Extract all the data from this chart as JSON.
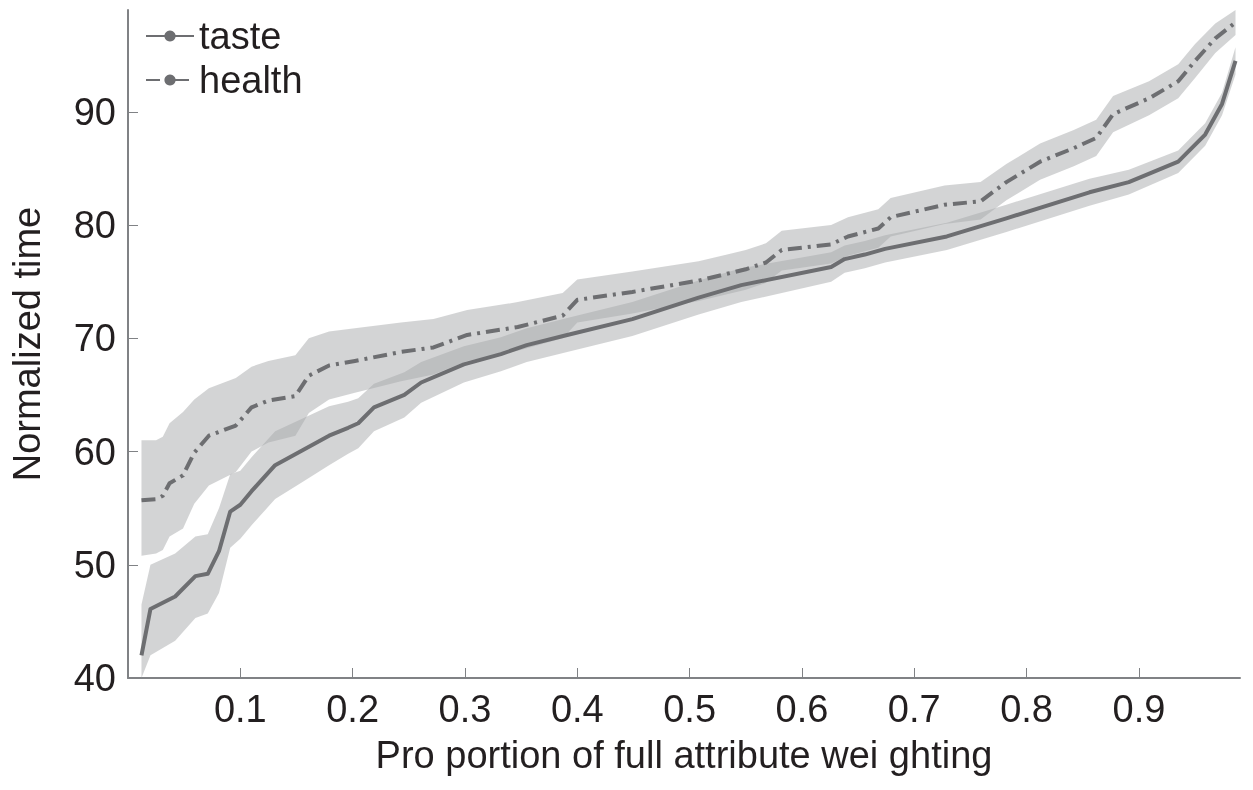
{
  "chart_data": {
    "type": "line",
    "xlabel": "Pro portion of full attribute wei ghting",
    "ylabel": "Normalized time",
    "xlim": [
      0,
      0.99
    ],
    "xticks": [
      0.1,
      0.2,
      0.3,
      0.4,
      0.5,
      0.6,
      0.7,
      0.8,
      0.9
    ],
    "ylim": [
      40,
      99
    ],
    "yticks": [
      40,
      50,
      60,
      70,
      80,
      90
    ],
    "grid": false,
    "legend": "top left",
    "marker": "none",
    "series": [
      {
        "name": "taste",
        "color": "#6d6e71",
        "line_style": "solid",
        "x": [
          0.012,
          0.02,
          0.042,
          0.06,
          0.071,
          0.081,
          0.091,
          0.1,
          0.11,
          0.131,
          0.155,
          0.179,
          0.196,
          0.205,
          0.219,
          0.246,
          0.261,
          0.299,
          0.332,
          0.355,
          0.391,
          0.449,
          0.508,
          0.546,
          0.626,
          0.638,
          0.656,
          0.674,
          0.729,
          0.782,
          0.856,
          0.891,
          0.935,
          0.959,
          0.974,
          0.986
        ],
        "values": [
          42,
          46.1,
          47.2,
          49,
          49.2,
          51.2,
          54.7,
          55.3,
          56.5,
          58.8,
          60.1,
          61.4,
          62.1,
          62.5,
          63.9,
          65,
          66.1,
          67.7,
          68.6,
          69.4,
          70.3,
          71.7,
          73.6,
          74.7,
          76.3,
          77,
          77.4,
          77.9,
          79,
          80.6,
          82.9,
          83.8,
          85.6,
          88,
          90.7,
          94.5
        ],
        "lower": [
          40,
          42,
          43.3,
          45.3,
          45.7,
          47.5,
          51.5,
          52.3,
          53.5,
          55.8,
          57.3,
          58.8,
          59.8,
          60.3,
          61.8,
          63,
          64.3,
          66.1,
          67.1,
          67.9,
          68.8,
          70.2,
          72.1,
          73.2,
          75,
          75.8,
          76.2,
          76.7,
          77.8,
          79.4,
          81.7,
          82.7,
          84.6,
          87,
          89.7,
          93.3
        ],
        "upper": [
          46.5,
          50,
          51,
          52.5,
          52.7,
          55,
          58,
          58.3,
          59.5,
          61.8,
          62.9,
          64,
          64.4,
          64.7,
          66,
          67,
          67.9,
          69.3,
          70.1,
          70.9,
          71.8,
          73.2,
          75.1,
          76.2,
          77.6,
          78.2,
          78.6,
          79.1,
          80.2,
          81.8,
          84.1,
          84.9,
          86.6,
          89,
          91.7,
          95.7
        ]
      },
      {
        "name": "health",
        "color": "#6d6e71",
        "line_style": "dashdot",
        "x": [
          0.012,
          0.025,
          0.031,
          0.037,
          0.049,
          0.059,
          0.072,
          0.096,
          0.11,
          0.125,
          0.149,
          0.161,
          0.179,
          0.202,
          0.243,
          0.272,
          0.302,
          0.347,
          0.387,
          0.4,
          0.449,
          0.508,
          0.55,
          0.568,
          0.582,
          0.626,
          0.641,
          0.668,
          0.679,
          0.727,
          0.759,
          0.782,
          0.812,
          0.842,
          0.862,
          0.877,
          0.909,
          0.935,
          0.95,
          0.968,
          0.986
        ],
        "values": [
          55.7,
          55.8,
          56.1,
          57.2,
          57.9,
          59.9,
          61.4,
          62.3,
          63.9,
          64.5,
          64.9,
          66.7,
          67.6,
          68,
          68.8,
          69.2,
          70.3,
          71,
          72,
          73.4,
          74.1,
          75.1,
          76.1,
          76.7,
          77.8,
          78.3,
          79,
          79.7,
          80.7,
          81.8,
          82.1,
          83.8,
          85.6,
          86.8,
          87.7,
          89.8,
          91.2,
          92.7,
          94.5,
          96.5,
          97.9
        ],
        "lower": [
          50.8,
          51,
          51.3,
          52.5,
          53.2,
          55.4,
          57,
          58.2,
          60,
          60.8,
          61.4,
          63.4,
          64.6,
          65.2,
          66.2,
          66.8,
          68,
          68.9,
          70,
          71.4,
          72.2,
          73.3,
          74.3,
          74.9,
          76,
          76.6,
          77.3,
          78,
          79,
          80.1,
          80.5,
          82.2,
          84,
          85.2,
          86.1,
          88.2,
          89.7,
          91.2,
          93,
          95.2,
          96.8
        ],
        "upper": [
          61,
          61,
          61.3,
          62.5,
          63.5,
          64.6,
          65.6,
          66.5,
          67.5,
          68,
          68.5,
          70,
          70.6,
          70.9,
          71.4,
          71.7,
          72.5,
          73.2,
          74,
          75.2,
          75.9,
          76.8,
          77.8,
          78.4,
          79.5,
          80,
          80.7,
          81.4,
          82.4,
          83.5,
          83.8,
          85.4,
          87.2,
          88.4,
          89.3,
          91.4,
          92.7,
          94.2,
          96,
          97.8,
          99
        ]
      }
    ]
  }
}
